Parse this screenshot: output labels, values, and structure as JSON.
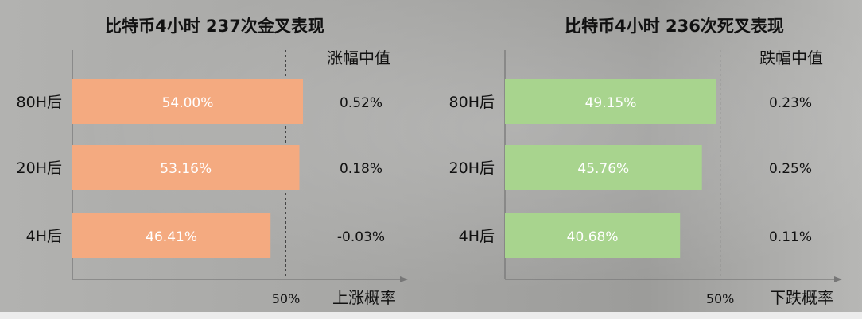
{
  "chart_data": [
    {
      "type": "bar",
      "orientation": "horizontal",
      "title": "比特币4小时 237次金叉表现",
      "categories": [
        "80H后",
        "20H后",
        "4H后"
      ],
      "values": [
        54.0,
        53.16,
        46.41
      ],
      "value_labels": [
        "54.00%",
        "53.16%",
        "46.41%"
      ],
      "bar_color": "#f4aa80",
      "xlim": [
        0,
        65
      ],
      "reference_value": 50,
      "reference_label": "50%",
      "xlabel": "上涨概率",
      "side_header": "涨幅中值",
      "side_values": [
        "0.52%",
        "0.18%",
        "-0.03%"
      ]
    },
    {
      "type": "bar",
      "orientation": "horizontal",
      "title": "比特币4小时 236次死叉表现",
      "categories": [
        "80H后",
        "20H后",
        "4H后"
      ],
      "values": [
        49.15,
        45.76,
        40.68
      ],
      "value_labels": [
        "49.15%",
        "45.76%",
        "40.68%"
      ],
      "bar_color": "#a8d48e",
      "xlim": [
        0,
        65
      ],
      "reference_value": 50,
      "reference_label": "50%",
      "xlabel": "下跌概率",
      "side_header": "跌幅中值",
      "side_values": [
        "0.23%",
        "0.25%",
        "0.11%"
      ]
    }
  ]
}
